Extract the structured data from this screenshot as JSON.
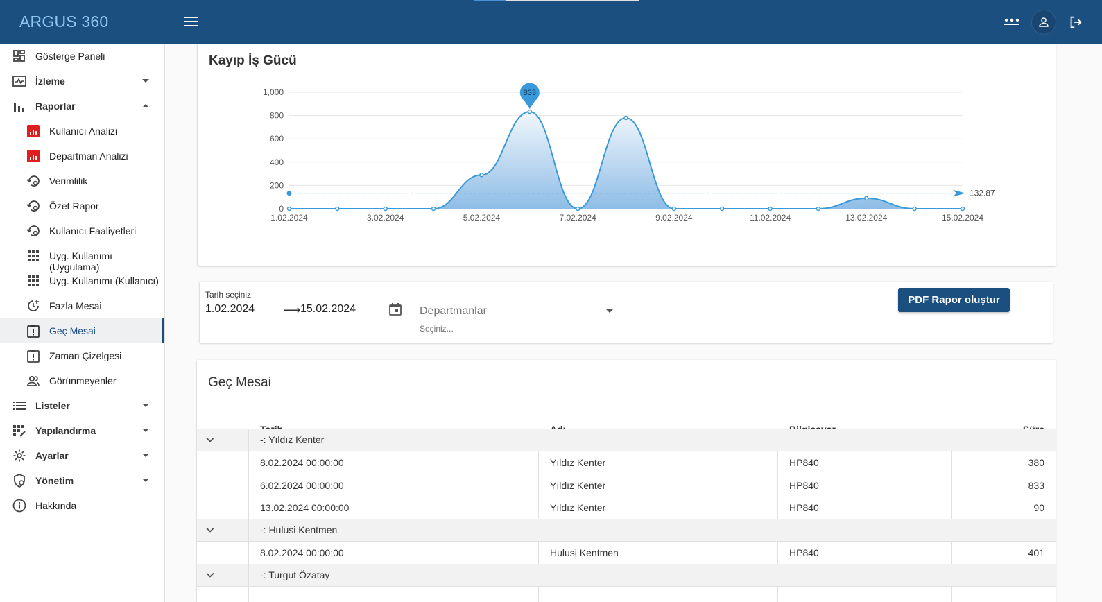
{
  "header": {
    "brand": "ARGUS 360"
  },
  "sidebar": {
    "items": [
      {
        "label": "Gösterge Paneli"
      },
      {
        "label": "İzleme"
      },
      {
        "label": "Raporlar"
      },
      {
        "label": "Kullanıcı Analizi"
      },
      {
        "label": "Departman Analizi"
      },
      {
        "label": "Verimlilik"
      },
      {
        "label": "Özet Rapor"
      },
      {
        "label": "Kullanıcı Faaliyetleri"
      },
      {
        "label": "Uyg. Kullanımı (Uygulama)"
      },
      {
        "label": "Uyg. Kullanımı (Kullanıcı)"
      },
      {
        "label": "Fazla Mesai"
      },
      {
        "label": "Geç Mesai"
      },
      {
        "label": "Zaman Çizelgesi"
      },
      {
        "label": "Görünmeyenler"
      },
      {
        "label": "Listeler"
      },
      {
        "label": "Yapılandırma"
      },
      {
        "label": "Ayarlar"
      },
      {
        "label": "Yönetim"
      },
      {
        "label": "Hakkında"
      }
    ]
  },
  "chart_card": {
    "title": "Kayıp İş Gücü"
  },
  "chart_data": {
    "type": "area",
    "title": "Kayıp İş Gücü",
    "x": [
      "1.02.2024",
      "2.02.2024",
      "3.02.2024",
      "4.02.2024",
      "5.02.2024",
      "6.02.2024",
      "7.02.2024",
      "8.02.2024",
      "9.02.2024",
      "10.02.2024",
      "11.02.2024",
      "12.02.2024",
      "13.02.2024",
      "14.02.2024",
      "15.02.2024"
    ],
    "values": [
      0,
      0,
      0,
      0,
      290,
      833,
      0,
      780,
      0,
      0,
      0,
      0,
      90,
      0,
      0
    ],
    "x_tick_labels": [
      "1.02.2024",
      "3.02.2024",
      "5.02.2024",
      "7.02.2024",
      "9.02.2024",
      "11.02.2024",
      "13.02.2024",
      "15.02.2024"
    ],
    "y_tick_labels": [
      "0",
      "200",
      "400",
      "600",
      "800",
      "1,000"
    ],
    "ylim": [
      0,
      1000
    ],
    "max_marker": {
      "label": "833",
      "value": 833
    },
    "average": {
      "label": "132.87",
      "value": 132.87
    },
    "color": "#3a9ad9"
  },
  "filter": {
    "date_label": "Tarih seçiniz",
    "start_date": "1.02.2024",
    "arrow": "⟶",
    "end_date": "15.02.2024",
    "department_placeholder": "Departmanlar",
    "department_hint": "Seçiniz...",
    "pdf_button": "PDF Rapor oluştur"
  },
  "table": {
    "title": "Geç Mesai",
    "columns": {
      "date": "Tarih",
      "name": "Adı",
      "computer": "Bilgisayar",
      "duration": "Süre"
    },
    "groups": [
      {
        "label": "-: Yıldız Kenter",
        "rows": [
          {
            "date": "8.02.2024 00:00:00",
            "name": "Yıldız Kenter",
            "computer": "HP840",
            "duration": "380"
          },
          {
            "date": "6.02.2024 00:00:00",
            "name": "Yıldız Kenter",
            "computer": "HP840",
            "duration": "833"
          },
          {
            "date": "13.02.2024 00:00:00",
            "name": "Yıldız Kenter",
            "computer": "HP840",
            "duration": "90"
          }
        ]
      },
      {
        "label": "-: Hulusi Kentmen",
        "rows": [
          {
            "date": "8.02.2024 00:00:00",
            "name": "Hulusi Kentmen",
            "computer": "HP840",
            "duration": "401"
          }
        ]
      },
      {
        "label": "-: Turgut Özatay",
        "rows": []
      }
    ]
  }
}
